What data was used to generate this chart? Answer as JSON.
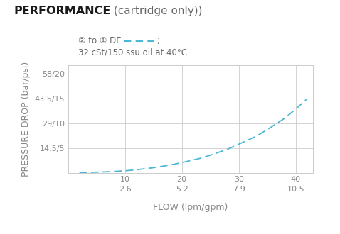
{
  "title_bold": "PERFORMANCE",
  "title_normal": " (cartridge only))",
  "legend_line1_pre": "② to ① DE ",
  "legend_line1_post": ";",
  "legend_line2": "32 cSt/150 ssu oil at 40°C",
  "xlabel": "FLOW (lpm/gpm)",
  "ylabel": "PRESSURE DROP (bar/psi)",
  "ytick_labels": [
    "",
    "14.5/5",
    "29/10",
    "43.5/15",
    "58/20"
  ],
  "ytick_values": [
    0,
    14.5,
    29,
    43.5,
    58
  ],
  "xtick_lpm": [
    10,
    20,
    30,
    40
  ],
  "xtick_gpm": [
    "2.6",
    "5.2",
    "7.9",
    "10.5"
  ],
  "xlim": [
    0,
    43
  ],
  "ylim": [
    0,
    63
  ],
  "curve_color": "#4db8d4",
  "curve_x_lpm": [
    2,
    4,
    6,
    8,
    10,
    12,
    15,
    18,
    20,
    23,
    25,
    28,
    30,
    33,
    35,
    38,
    40,
    42
  ],
  "curve_y_bar": [
    0.3,
    0.5,
    0.7,
    1.0,
    1.4,
    2.0,
    3.2,
    4.8,
    6.2,
    8.5,
    10.5,
    14.0,
    17.0,
    21.5,
    25.5,
    32.0,
    37.5,
    43.5
  ],
  "grid_color": "#cccccc",
  "background_color": "#ffffff",
  "text_color": "#888888",
  "title_color": "#1a1a1a",
  "subtitle_color": "#666666"
}
